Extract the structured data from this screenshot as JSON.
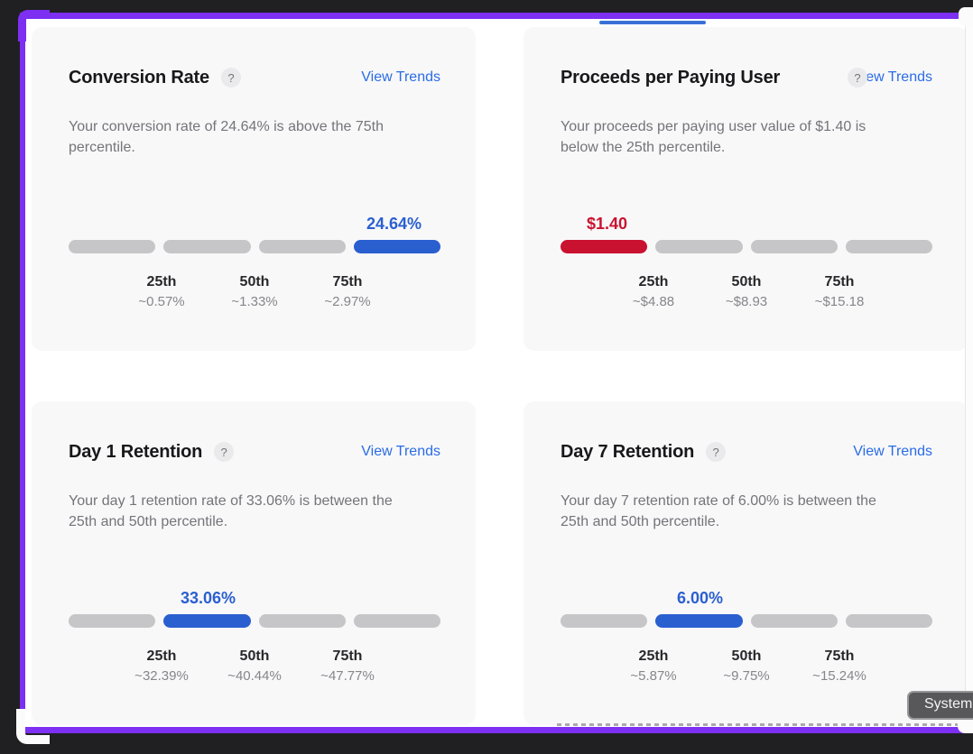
{
  "window": {
    "background_dark": "#202023",
    "share_border_color": "#7d2ff2",
    "active_tab_underline_color": "#3a70d6",
    "system_button": {
      "label": "System"
    }
  },
  "cards": [
    {
      "title": "Conversion Rate",
      "help_icon": "?",
      "link": "View Trends",
      "description_line1": "Your conversion rate of 24.64% is above the 75th",
      "description_line2": "percentile.",
      "value": "24.64%",
      "value_color": "#2a5fd0",
      "active_segment": 3,
      "percentiles": [
        {
          "label": "25th",
          "value": "~0.57%"
        },
        {
          "label": "50th",
          "value": "~1.33%"
        },
        {
          "label": "75th",
          "value": "~2.97%"
        }
      ]
    },
    {
      "title": "Proceeds per Paying User",
      "help_icon": "?",
      "link": "View Trends",
      "description_line1": "Your proceeds per paying user value of $1.40 is",
      "description_line2": "below the 25th percentile.",
      "value": "$1.40",
      "value_color": "#c9122f",
      "active_segment": 0,
      "percentiles": [
        {
          "label": "25th",
          "value": "~$4.88"
        },
        {
          "label": "50th",
          "value": "~$8.93"
        },
        {
          "label": "75th",
          "value": "~$15.18"
        }
      ]
    },
    {
      "title": "Day 1 Retention",
      "help_icon": "?",
      "link": "View Trends",
      "description_line1": "Your day 1 retention rate of 33.06% is between the",
      "description_line2": "25th and 50th percentile.",
      "value": "33.06%",
      "value_color": "#2a5fd0",
      "active_segment": 1,
      "percentiles": [
        {
          "label": "25th",
          "value": "~32.39%"
        },
        {
          "label": "50th",
          "value": "~40.44%"
        },
        {
          "label": "75th",
          "value": "~47.77%"
        }
      ]
    },
    {
      "title": "Day 7 Retention",
      "help_icon": "?",
      "link": "View Trends",
      "description_line1": "Your day 7 retention rate of 6.00% is between the",
      "description_line2": "25th and 50th percentile.",
      "value": "6.00%",
      "value_color": "#2a5fd0",
      "active_segment": 1,
      "percentiles": [
        {
          "label": "25th",
          "value": "~5.87%"
        },
        {
          "label": "50th",
          "value": "~9.75%"
        },
        {
          "label": "75th",
          "value": "~15.24%"
        }
      ]
    }
  ]
}
